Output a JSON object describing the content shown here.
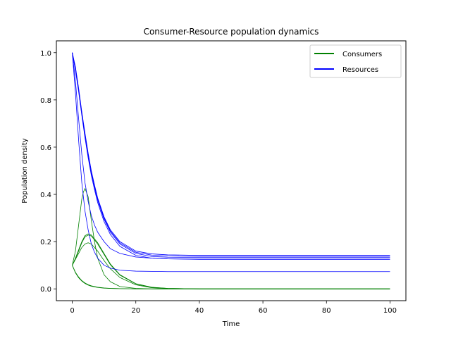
{
  "chart_data": {
    "type": "line",
    "title": "Consumer-Resource population dynamics",
    "xlabel": "Time",
    "ylabel": "Population density",
    "xlim": [
      -5,
      105
    ],
    "ylim": [
      -0.05,
      1.05
    ],
    "xticks": [
      0,
      20,
      40,
      60,
      80,
      100
    ],
    "xtick_labels": [
      "0",
      "20",
      "40",
      "60",
      "80",
      "100"
    ],
    "yticks": [
      0.0,
      0.2,
      0.4,
      0.6,
      0.8,
      1.0
    ],
    "ytick_labels": [
      "0.0",
      "0.2",
      "0.4",
      "0.6",
      "0.8",
      "1.0"
    ],
    "grid": false,
    "legend": {
      "placement": "top-right",
      "entries": [
        {
          "label": "Consumers",
          "color": "#008000"
        },
        {
          "label": "Resources",
          "color": "#0000ff"
        }
      ]
    },
    "series": [
      {
        "group": "Consumers",
        "color": "#008000",
        "x": [
          0,
          1,
          2,
          3,
          4,
          5,
          6,
          8,
          10,
          12,
          15,
          20,
          25,
          30,
          40,
          60,
          80,
          100
        ],
        "y": [
          0.1,
          0.07,
          0.05,
          0.035,
          0.025,
          0.018,
          0.013,
          0.007,
          0.004,
          0.002,
          0.001,
          0.0,
          0.0,
          0.0,
          0.0,
          0.0,
          0.0,
          0.0
        ]
      },
      {
        "group": "Consumers",
        "color": "#008000",
        "x": [
          0,
          1,
          2,
          3,
          4,
          5,
          6,
          8,
          10,
          12,
          15,
          20,
          25,
          30,
          40,
          60,
          80,
          100
        ],
        "y": [
          0.1,
          0.068,
          0.047,
          0.033,
          0.023,
          0.016,
          0.011,
          0.006,
          0.003,
          0.002,
          0.001,
          0.0,
          0.0,
          0.0,
          0.0,
          0.0,
          0.0,
          0.0
        ]
      },
      {
        "group": "Consumers",
        "color": "#008000",
        "x": [
          0,
          1,
          2,
          3,
          4,
          5,
          6,
          8,
          10,
          12,
          15,
          20,
          25,
          30,
          40,
          60,
          80,
          100
        ],
        "y": [
          0.1,
          0.13,
          0.165,
          0.2,
          0.225,
          0.233,
          0.228,
          0.195,
          0.15,
          0.105,
          0.06,
          0.022,
          0.007,
          0.002,
          0.0,
          0.0,
          0.0,
          0.0
        ]
      },
      {
        "group": "Consumers",
        "color": "#008000",
        "x": [
          0,
          1,
          2,
          3,
          4,
          5,
          6,
          8,
          10,
          12,
          15,
          20,
          25,
          30,
          40,
          60,
          80,
          100
        ],
        "y": [
          0.1,
          0.128,
          0.16,
          0.195,
          0.22,
          0.228,
          0.224,
          0.19,
          0.146,
          0.102,
          0.058,
          0.021,
          0.006,
          0.002,
          0.0,
          0.0,
          0.0,
          0.0
        ]
      },
      {
        "group": "Consumers",
        "color": "#008000",
        "x": [
          0,
          1,
          2,
          3,
          4,
          5,
          6,
          8,
          10,
          12,
          15,
          20,
          25,
          30,
          40,
          60,
          80,
          100
        ],
        "y": [
          0.1,
          0.125,
          0.15,
          0.175,
          0.19,
          0.195,
          0.19,
          0.16,
          0.12,
          0.085,
          0.048,
          0.017,
          0.005,
          0.001,
          0.0,
          0.0,
          0.0,
          0.0
        ]
      },
      {
        "group": "Consumers",
        "color": "#008000",
        "x": [
          0,
          1,
          2,
          3,
          3.5,
          4,
          5,
          6,
          7,
          8,
          10,
          12,
          15,
          20,
          25,
          30,
          40,
          60,
          80,
          100
        ],
        "y": [
          0.1,
          0.16,
          0.27,
          0.38,
          0.41,
          0.425,
          0.39,
          0.29,
          0.2,
          0.13,
          0.06,
          0.03,
          0.01,
          0.002,
          0.0,
          0.0,
          0.0,
          0.0,
          0.0,
          0.0
        ]
      },
      {
        "group": "Resources",
        "color": "#0000ff",
        "x": [
          0,
          1,
          2,
          3,
          4,
          5,
          6,
          7,
          8,
          10,
          12,
          15,
          20,
          25,
          30,
          40,
          60,
          80,
          100
        ],
        "y": [
          1.0,
          0.94,
          0.85,
          0.75,
          0.66,
          0.575,
          0.5,
          0.44,
          0.385,
          0.305,
          0.25,
          0.2,
          0.16,
          0.148,
          0.144,
          0.142,
          0.142,
          0.142,
          0.142
        ]
      },
      {
        "group": "Resources",
        "color": "#0000ff",
        "x": [
          0,
          1,
          2,
          3,
          4,
          5,
          6,
          7,
          8,
          10,
          12,
          15,
          20,
          25,
          30,
          40,
          60,
          80,
          100
        ],
        "y": [
          1.0,
          0.935,
          0.845,
          0.745,
          0.655,
          0.57,
          0.495,
          0.435,
          0.38,
          0.3,
          0.245,
          0.195,
          0.155,
          0.143,
          0.139,
          0.138,
          0.138,
          0.138,
          0.138
        ]
      },
      {
        "group": "Resources",
        "color": "#0000ff",
        "x": [
          0,
          1,
          2,
          3,
          4,
          5,
          6,
          7,
          8,
          10,
          12,
          15,
          20,
          25,
          30,
          40,
          60,
          80,
          100
        ],
        "y": [
          1.0,
          0.93,
          0.84,
          0.74,
          0.65,
          0.565,
          0.49,
          0.43,
          0.375,
          0.295,
          0.24,
          0.19,
          0.15,
          0.137,
          0.134,
          0.133,
          0.133,
          0.133,
          0.133
        ]
      },
      {
        "group": "Resources",
        "color": "#0000ff",
        "x": [
          0,
          1,
          2,
          3,
          4,
          5,
          6,
          7,
          8,
          10,
          12,
          15,
          20,
          25,
          30,
          40,
          60,
          80,
          100
        ],
        "y": [
          1.0,
          0.925,
          0.835,
          0.735,
          0.64,
          0.555,
          0.48,
          0.42,
          0.365,
          0.285,
          0.23,
          0.18,
          0.142,
          0.13,
          0.127,
          0.126,
          0.126,
          0.126,
          0.126
        ]
      },
      {
        "group": "Resources",
        "color": "#0000ff",
        "x": [
          0,
          1,
          2,
          3,
          4,
          5,
          6,
          7,
          8,
          10,
          12,
          15,
          20,
          25,
          30,
          40,
          60,
          80,
          100
        ],
        "y": [
          1.0,
          0.88,
          0.72,
          0.57,
          0.45,
          0.37,
          0.31,
          0.27,
          0.24,
          0.2,
          0.17,
          0.15,
          0.135,
          0.13,
          0.127,
          0.125,
          0.125,
          0.125,
          0.125
        ]
      },
      {
        "group": "Resources",
        "color": "#0000ff",
        "x": [
          0,
          1,
          2,
          3,
          4,
          5,
          6,
          7,
          8,
          10,
          12,
          15,
          20,
          25,
          30,
          40,
          60,
          80,
          100
        ],
        "y": [
          1.0,
          0.83,
          0.63,
          0.45,
          0.33,
          0.25,
          0.19,
          0.155,
          0.13,
          0.1,
          0.088,
          0.079,
          0.075,
          0.074,
          0.073,
          0.073,
          0.073,
          0.073,
          0.073
        ]
      }
    ]
  }
}
